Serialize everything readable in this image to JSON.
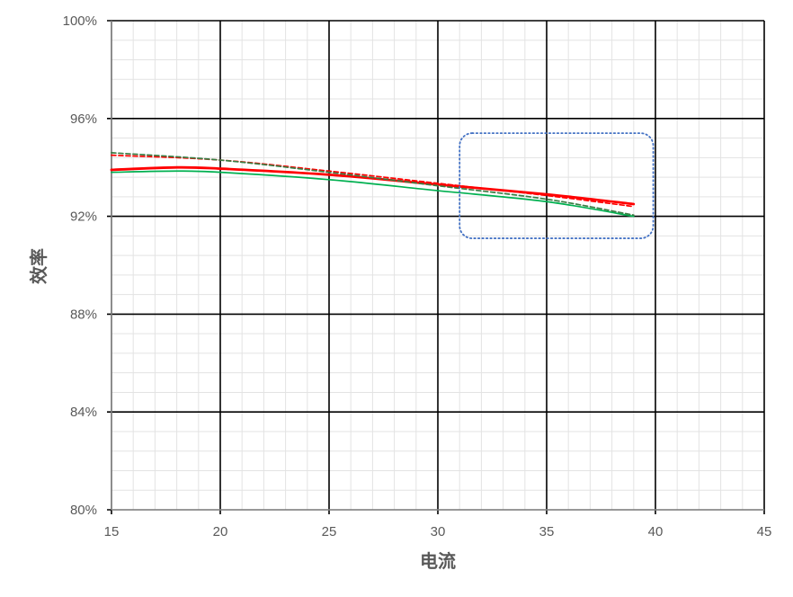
{
  "chart_data": {
    "type": "line",
    "title": "",
    "xlabel": "电流",
    "ylabel": "效率",
    "xlim": [
      15,
      45
    ],
    "ylim": [
      80,
      100
    ],
    "x_ticks": [
      15,
      20,
      25,
      30,
      35,
      40,
      45
    ],
    "y_ticks": [
      80,
      84,
      88,
      92,
      96,
      100
    ],
    "y_tick_labels": [
      "80%",
      "84%",
      "88%",
      "92%",
      "96%",
      "100%"
    ],
    "grid": {
      "major": true,
      "minor": true
    },
    "legend": "none",
    "series": [
      {
        "color": "#ff0000",
        "style": "solid",
        "width": "thick",
        "points": [
          [
            15,
            93.9
          ],
          [
            18,
            94.0
          ],
          [
            20,
            93.95
          ],
          [
            25,
            93.7
          ],
          [
            30,
            93.3
          ],
          [
            35,
            92.9
          ],
          [
            39,
            92.5
          ]
        ]
      },
      {
        "color": "#ff0000",
        "style": "dashed",
        "width": "thin",
        "points": [
          [
            15,
            94.5
          ],
          [
            20,
            94.3
          ],
          [
            25,
            93.85
          ],
          [
            30,
            93.35
          ],
          [
            35,
            92.85
          ],
          [
            39,
            92.4
          ]
        ]
      },
      {
        "color": "#00b050",
        "style": "solid",
        "width": "thin",
        "points": [
          [
            15,
            93.8
          ],
          [
            18,
            93.85
          ],
          [
            20,
            93.8
          ],
          [
            25,
            93.5
          ],
          [
            30,
            93.05
          ],
          [
            35,
            92.6
          ],
          [
            39,
            92.0
          ]
        ]
      },
      {
        "color": "#3a7d44",
        "style": "dashed",
        "width": "thin",
        "points": [
          [
            15,
            94.6
          ],
          [
            20,
            94.3
          ],
          [
            25,
            93.8
          ],
          [
            30,
            93.25
          ],
          [
            35,
            92.7
          ],
          [
            39,
            92.05
          ]
        ]
      }
    ],
    "annotations": [
      {
        "shape": "rounded-rect",
        "style": "dotted",
        "color": "#4472c4",
        "x_range": [
          31,
          39.9
        ],
        "y_range": [
          91.1,
          95.4
        ]
      }
    ]
  }
}
